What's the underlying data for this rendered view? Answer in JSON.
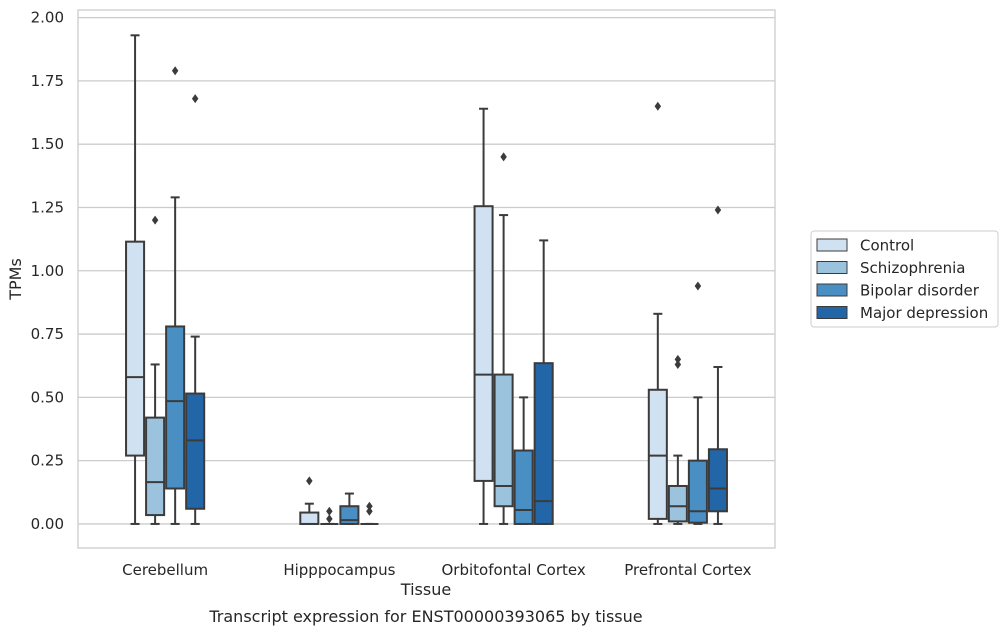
{
  "chart_data": {
    "type": "box",
    "caption": "Transcript expression for ENST00000393065 by tissue",
    "xlabel": "Tissue",
    "ylabel": "TPMs",
    "ylim": [
      -0.095,
      2.03
    ],
    "yticks": [
      "0.00",
      "0.25",
      "0.50",
      "0.75",
      "1.00",
      "1.25",
      "1.50",
      "1.75",
      "2.00"
    ],
    "ytick_values": [
      0,
      0.25,
      0.5,
      0.75,
      1.0,
      1.25,
      1.5,
      1.75,
      2.0
    ],
    "grid": "horizontal",
    "legend_position": "right",
    "categories": [
      "Cerebellum",
      "Hipppocampus",
      "Orbitofontal Cortex",
      "Prefrontal Cortex"
    ],
    "series": [
      {
        "name": "Control",
        "color": "#d0e1f2",
        "boxes": [
          {
            "whislo": 0.0,
            "q1": 0.27,
            "med": 0.58,
            "q3": 1.115,
            "whishi": 1.93,
            "fliers": []
          },
          {
            "whislo": 0.0,
            "q1": 0.0,
            "med": 0.0,
            "q3": 0.045,
            "whishi": 0.08,
            "fliers": [
              0.17
            ]
          },
          {
            "whislo": 0.0,
            "q1": 0.17,
            "med": 0.59,
            "q3": 1.255,
            "whishi": 1.64,
            "fliers": []
          },
          {
            "whislo": 0.0,
            "q1": 0.02,
            "med": 0.27,
            "q3": 0.53,
            "whishi": 0.83,
            "fliers": [
              1.65
            ]
          }
        ]
      },
      {
        "name": "Schizophrenia",
        "color": "#9cc3dd",
        "boxes": [
          {
            "whislo": 0.0,
            "q1": 0.035,
            "med": 0.165,
            "q3": 0.42,
            "whishi": 0.63,
            "fliers": [
              1.2
            ]
          },
          {
            "whislo": 0.0,
            "q1": 0.0,
            "med": 0.0,
            "q3": 0.0,
            "whishi": 0.0,
            "fliers": [
              0.05,
              0.02
            ]
          },
          {
            "whislo": 0.0,
            "q1": 0.07,
            "med": 0.15,
            "q3": 0.59,
            "whishi": 1.22,
            "fliers": [
              1.45
            ]
          },
          {
            "whislo": 0.0,
            "q1": 0.01,
            "med": 0.07,
            "q3": 0.15,
            "whishi": 0.27,
            "fliers": [
              0.65,
              0.63
            ]
          }
        ]
      },
      {
        "name": "Bipolar disorder",
        "color": "#4a8fc4",
        "boxes": [
          {
            "whislo": 0.0,
            "q1": 0.14,
            "med": 0.485,
            "q3": 0.78,
            "whishi": 1.29,
            "fliers": [
              1.79
            ]
          },
          {
            "whislo": 0.0,
            "q1": 0.0,
            "med": 0.015,
            "q3": 0.07,
            "whishi": 0.12,
            "fliers": []
          },
          {
            "whislo": 0.0,
            "q1": 0.0,
            "med": 0.055,
            "q3": 0.29,
            "whishi": 0.5,
            "fliers": []
          },
          {
            "whislo": 0.0,
            "q1": 0.005,
            "med": 0.05,
            "q3": 0.25,
            "whishi": 0.5,
            "fliers": [
              0.94
            ]
          }
        ]
      },
      {
        "name": "Major depression",
        "color": "#2366a8",
        "boxes": [
          {
            "whislo": 0.0,
            "q1": 0.06,
            "med": 0.33,
            "q3": 0.515,
            "whishi": 0.74,
            "fliers": [
              1.68
            ]
          },
          {
            "whislo": 0.0,
            "q1": 0.0,
            "med": 0.0,
            "q3": 0.0,
            "whishi": 0.0,
            "fliers": [
              0.07,
              0.05
            ]
          },
          {
            "whislo": 0.0,
            "q1": 0.0,
            "med": 0.09,
            "q3": 0.635,
            "whishi": 1.12,
            "fliers": []
          },
          {
            "whislo": 0.0,
            "q1": 0.05,
            "med": 0.14,
            "q3": 0.295,
            "whishi": 0.62,
            "fliers": [
              1.24
            ]
          }
        ]
      }
    ]
  }
}
